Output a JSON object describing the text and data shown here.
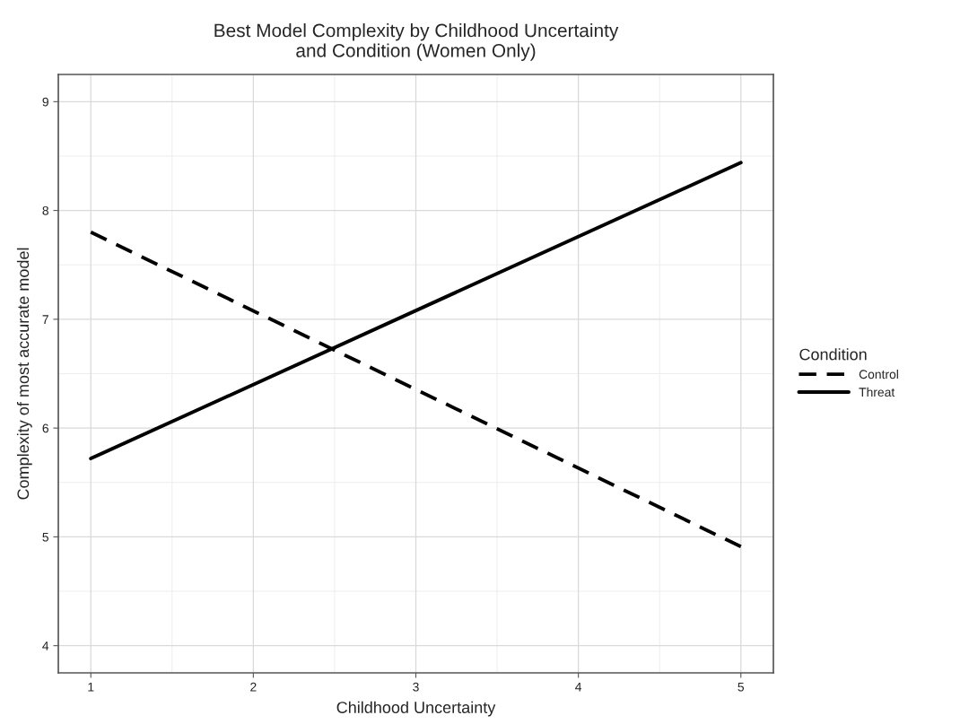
{
  "chart_data": {
    "type": "line",
    "title": "Best Model Complexity by Childhood Uncertainty\nand Condition (Women Only)",
    "xlabel": "Childhood Uncertainty",
    "ylabel": "Complexity of most accurate model",
    "legend_title": "Condition",
    "x": [
      1,
      5
    ],
    "series": [
      {
        "name": "Control",
        "color": "#000000",
        "values": [
          7.8,
          4.91
        ],
        "line_style": "dashed"
      },
      {
        "name": "Threat",
        "color": "#000000",
        "values": [
          5.72,
          8.44
        ],
        "line_style": "solid"
      }
    ],
    "xlim": [
      0.8,
      5.2
    ],
    "xticks": [
      1,
      2,
      3,
      4,
      5
    ],
    "ylim": [
      3.75,
      9.25
    ],
    "yticks": [
      4,
      5,
      6,
      7,
      8,
      9
    ],
    "grid": true,
    "legend": "right",
    "marker": "none"
  }
}
